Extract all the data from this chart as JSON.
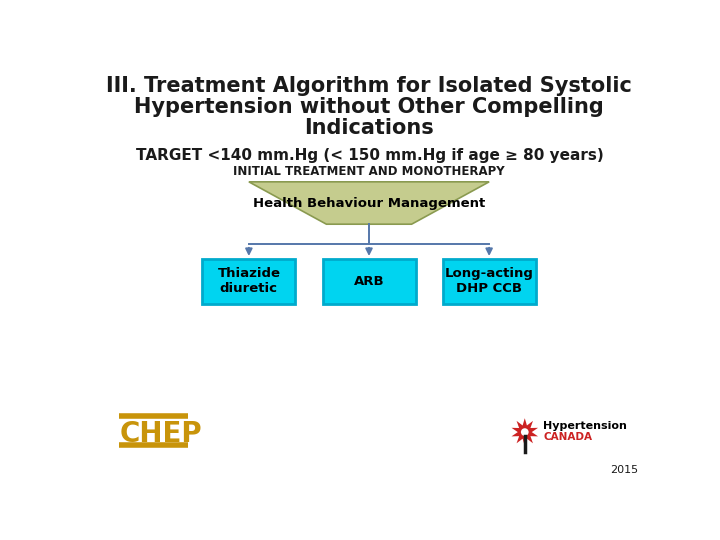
{
  "title_line1": "III. Treatment Algorithm for Isolated Systolic",
  "title_line2": "Hypertension without Other Compelling",
  "title_line3": "Indications",
  "target_text": "TARGET <140 mm.Hg (< 150 mm.Hg if age ≥ 80 years)",
  "subtitle_text": "INITIAL TREATMENT AND MONOTHERAPY",
  "top_box_text": "Health Behaviour Management",
  "box1_text": "Thiazide\ndiuretic",
  "box2_text": "ARB",
  "box3_text": "Long-acting\nDHP CCB",
  "bg_color": "#ffffff",
  "title_color": "#1a1a1a",
  "target_color": "#1a1a1a",
  "subtitle_color": "#1a1a1a",
  "top_box_fill": "#c5cc8e",
  "top_box_edge": "#8a9a50",
  "bottom_box_fill": "#00d4f0",
  "bottom_box_edge": "#00aacc",
  "arrow_color": "#5577aa",
  "chep_color": "#c8940a",
  "year_text": "2015",
  "year_color": "#1a1a1a",
  "title_fontsize": 15,
  "target_fontsize": 11,
  "subtitle_fontsize": 8.5,
  "topbox_fontsize": 9.5,
  "bottombox_fontsize": 9.5,
  "chep_fontsize": 20,
  "year_fontsize": 8
}
